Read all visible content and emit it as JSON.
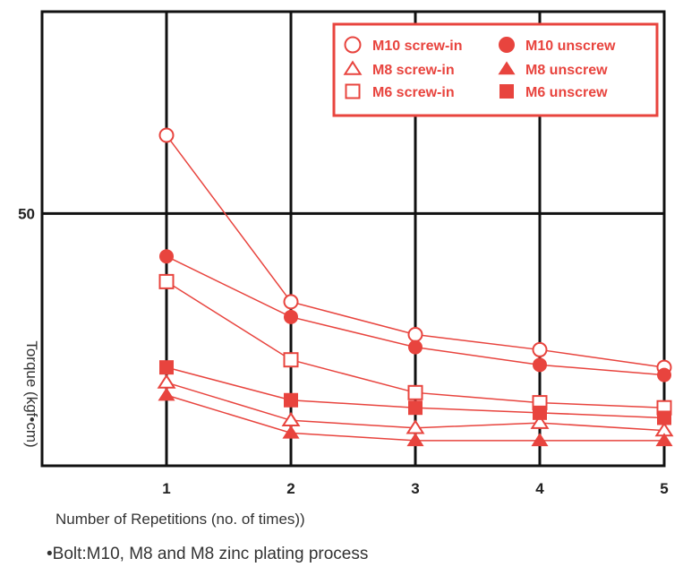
{
  "chart_data": {
    "type": "line",
    "x": [
      1,
      2,
      3,
      4,
      5
    ],
    "xlim": [
      0,
      5
    ],
    "xticks": [
      "1",
      "2",
      "3",
      "4",
      "5"
    ],
    "ylim": [
      0,
      90
    ],
    "yticks": [
      "50"
    ],
    "ytick_values": [
      50
    ],
    "ylabel": "Torque (kgf•cm)",
    "xlabel": "Number of Repetitions (no. of times))",
    "grid": true,
    "legend_position": "top-right",
    "color": "#e8443e",
    "series": [
      {
        "name": "M10 screw-in",
        "marker": "circle",
        "filled": false,
        "values": [
          65.5,
          32.5,
          26,
          23,
          19.5
        ]
      },
      {
        "name": "M10 unscrew",
        "marker": "circle",
        "filled": true,
        "values": [
          41.5,
          29.5,
          23.5,
          20,
          18
        ]
      },
      {
        "name": "M8 screw-in",
        "marker": "triangle",
        "filled": false,
        "values": [
          16.5,
          9,
          7.5,
          8.5,
          7
        ]
      },
      {
        "name": "M8 unscrew",
        "marker": "triangle",
        "filled": true,
        "values": [
          14,
          6.5,
          5,
          5,
          5
        ]
      },
      {
        "name": "M6 screw-in",
        "marker": "square",
        "filled": false,
        "values": [
          36.5,
          21,
          14.5,
          12.5,
          11.5
        ]
      },
      {
        "name": "M6 unscrew",
        "marker": "square",
        "filled": true,
        "values": [
          19.5,
          13,
          11.5,
          10.5,
          9.5
        ]
      }
    ]
  },
  "note": "•Bolt:M10, M8 and M8 zinc plating process"
}
